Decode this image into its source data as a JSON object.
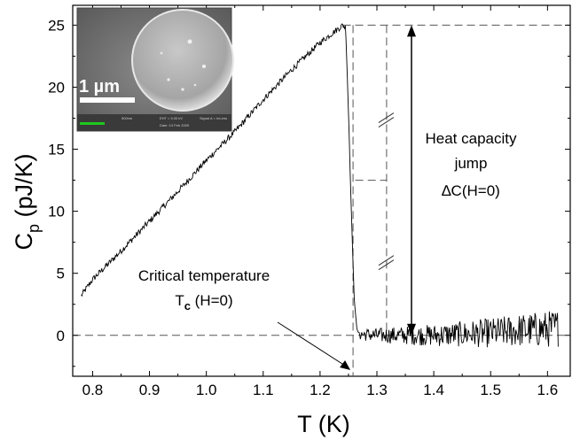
{
  "chart_data": {
    "type": "line",
    "xlabel": "T (K)",
    "ylabel": {
      "main": "C",
      "sub": "p",
      "unit": " (pJ/K)"
    },
    "xlim": [
      0.765,
      1.64
    ],
    "ylim": [
      -3.3,
      26.6
    ],
    "x_ticks": [
      "0.8",
      "0.9",
      "1.0",
      "1.1",
      "1.2",
      "1.3",
      "1.4",
      "1.5",
      "1.6"
    ],
    "x_tick_values": [
      0.8,
      0.9,
      1.0,
      1.1,
      1.2,
      1.3,
      1.4,
      1.5,
      1.6
    ],
    "y_ticks": [
      "0",
      "5",
      "10",
      "15",
      "20",
      "25"
    ],
    "y_tick_values": [
      0,
      5,
      10,
      15,
      20,
      25
    ],
    "grid": false,
    "series": [
      {
        "color": "#000000",
        "x": [
          0.78,
          0.8,
          0.85,
          0.9,
          0.95,
          1.0,
          1.05,
          1.1,
          1.15,
          1.2,
          1.24,
          1.245,
          1.25,
          1.255,
          1.26,
          1.265,
          1.27,
          1.3,
          1.35,
          1.4,
          1.45,
          1.5,
          1.55,
          1.6,
          1.62
        ],
        "y": [
          3.2,
          4.5,
          6.8,
          9.2,
          11.6,
          14.1,
          16.4,
          19.0,
          21.4,
          23.6,
          25.0,
          24.8,
          18.0,
          10.0,
          3.0,
          0.4,
          0.1,
          0.0,
          0.0,
          0.0,
          0.1,
          0.2,
          0.4,
          0.5,
          0.6
        ],
        "noise_start_x": 1.27
      }
    ],
    "reference_lines": {
      "zero_baseline": 0,
      "jump_top": 25,
      "jump_half": 12.5,
      "tc_x": 1.258,
      "jump_x": 1.317
    },
    "annotations": {
      "heat_capacity": {
        "line1": "Heat capacity",
        "line2": "jump",
        "line3": "∆C(H=0)"
      },
      "critical": {
        "line1": "Critical temperature",
        "main": "T",
        "sub": "c",
        "rest": " (H=0)"
      }
    },
    "inset": {
      "scale_label": "1 µm",
      "footer_left": "500nm",
      "footer_mid1": "EHT = 5.00 kV",
      "footer_mid2": "Date :13 Feb 2009",
      "footer_right": "Signal A = InLens"
    }
  }
}
